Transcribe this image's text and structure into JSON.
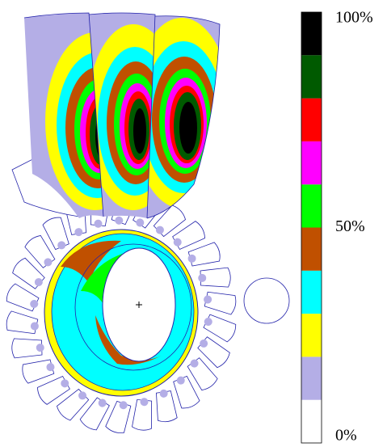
{
  "legend": {
    "range": [
      0,
      100
    ],
    "colors": [
      "#ffffff",
      "#b4aee6",
      "#ffff00",
      "#00ffff",
      "#c05000",
      "#00ff00",
      "#ff00ff",
      "#ff0000",
      "#005a00",
      "#000000"
    ],
    "ticks": [
      {
        "value": 100,
        "label": "100%"
      },
      {
        "value": 50,
        "label": "50%"
      },
      {
        "value": 0,
        "label": "0%"
      }
    ]
  }
}
